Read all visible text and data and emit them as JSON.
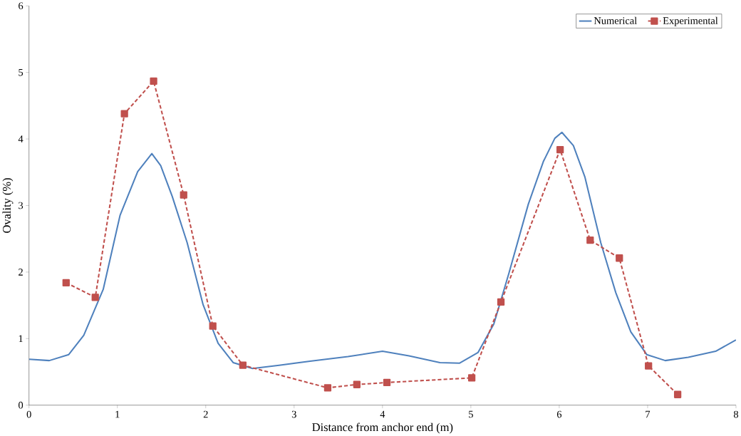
{
  "chart_data": {
    "type": "line",
    "xlabel": "Distance from anchor end (m)",
    "ylabel": "Ovality (%)",
    "xlim": [
      0,
      8
    ],
    "xticks": [
      0,
      1,
      2,
      3,
      4,
      5,
      6,
      7,
      8
    ],
    "ylim": [
      0,
      6
    ],
    "yticks": [
      0,
      1,
      2,
      3,
      4,
      5,
      6
    ],
    "grid": false,
    "legend": "top right",
    "series": [
      {
        "name": "Numerical",
        "color": "#4f81bd",
        "marker": "none",
        "line_style": "solid",
        "x": [
          0,
          0.23,
          0.45,
          0.62,
          0.84,
          1.03,
          1.23,
          1.39,
          1.49,
          1.62,
          1.79,
          1.97,
          2.14,
          2.31,
          2.53,
          2.83,
          3.18,
          3.61,
          4.0,
          4.3,
          4.65,
          4.87,
          5.08,
          5.26,
          5.43,
          5.65,
          5.82,
          5.95,
          6.03,
          6.16,
          6.29,
          6.47,
          6.64,
          6.81,
          6.99,
          7.2,
          7.46,
          7.77,
          8.0
        ],
        "values": [
          0.69,
          0.67,
          0.76,
          1.05,
          1.74,
          2.85,
          3.51,
          3.78,
          3.6,
          3.14,
          2.44,
          1.51,
          0.93,
          0.64,
          0.55,
          0.6,
          0.66,
          0.73,
          0.81,
          0.74,
          0.64,
          0.63,
          0.79,
          1.22,
          1.98,
          3.02,
          3.66,
          4.01,
          4.1,
          3.9,
          3.43,
          2.44,
          1.69,
          1.1,
          0.76,
          0.67,
          0.72,
          0.81,
          0.98
        ]
      },
      {
        "name": "Experimental",
        "color": "#c0504d",
        "marker": "square",
        "line_style": "dashed",
        "x": [
          0.42,
          0.75,
          1.08,
          1.41,
          1.75,
          2.08,
          2.42,
          3.38,
          3.71,
          4.05,
          5.01,
          5.34,
          6.01,
          6.35,
          6.68,
          7.01,
          7.34
        ],
        "values": [
          1.84,
          1.62,
          4.38,
          4.87,
          3.16,
          1.19,
          0.6,
          0.26,
          0.31,
          0.34,
          0.41,
          1.55,
          3.84,
          2.48,
          2.21,
          0.59,
          0.16
        ]
      }
    ]
  }
}
